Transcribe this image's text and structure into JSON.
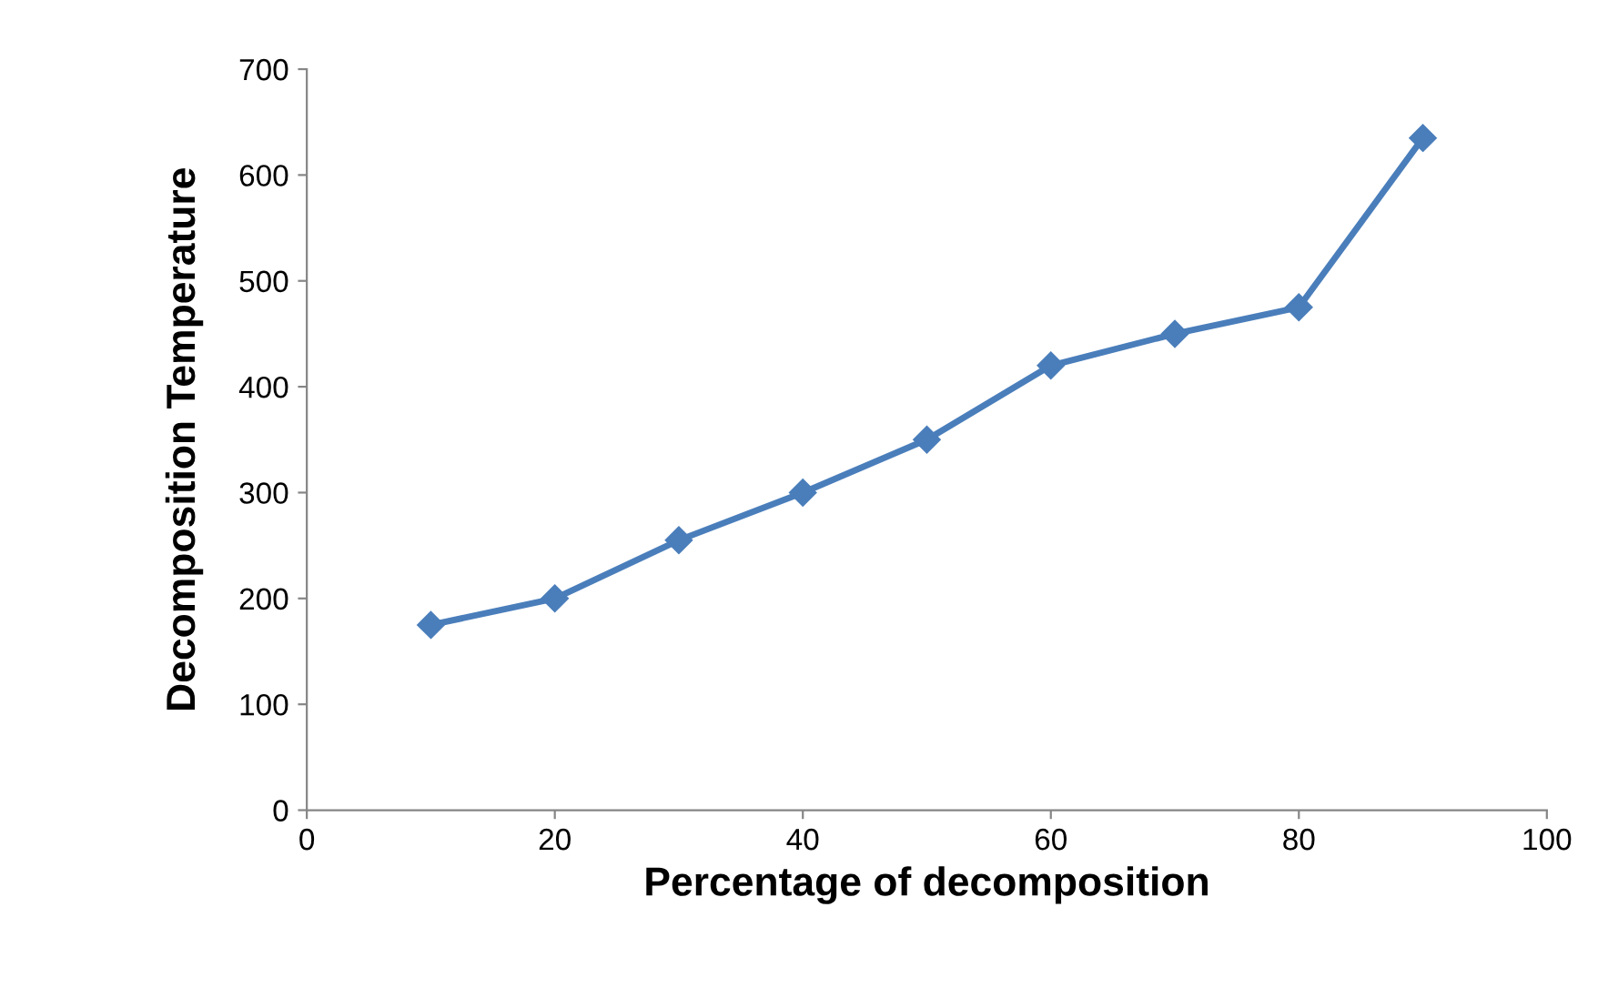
{
  "chart_data": {
    "type": "line",
    "xlabel": "Percentage of decomposition",
    "ylabel": "Decomposition Temperature",
    "x": [
      10,
      20,
      30,
      40,
      50,
      60,
      70,
      80,
      90
    ],
    "series": [
      {
        "color": "#4a7ebb",
        "values": [
          175,
          200,
          255,
          300,
          350,
          420,
          450,
          475,
          635
        ]
      }
    ],
    "xlim": [
      0,
      100
    ],
    "xticks": [
      0,
      20,
      40,
      60,
      80,
      100
    ],
    "ylim": [
      0,
      700
    ],
    "yticks": [
      0,
      100,
      200,
      300,
      400,
      500,
      600,
      700
    ],
    "grid": false,
    "legend": false,
    "marker": "diamond",
    "line_style": "solid"
  }
}
